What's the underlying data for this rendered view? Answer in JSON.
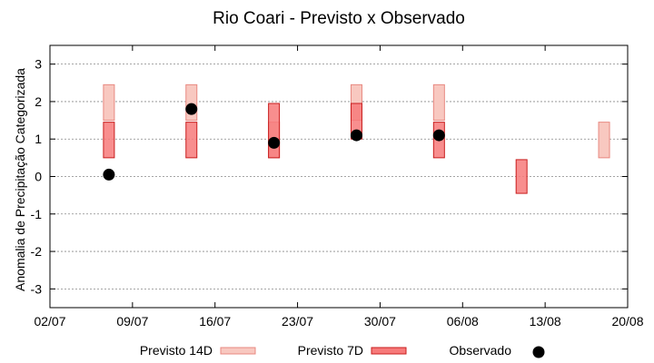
{
  "chart_data": {
    "type": "range-bar",
    "title": "Rio Coari - Previsto x Observado",
    "xlabel": "",
    "ylabel": "Anomalia de Precipitação Categorizada",
    "x_ticks": [
      "02/07",
      "09/07",
      "16/07",
      "23/07",
      "30/07",
      "06/08",
      "13/08",
      "20/08"
    ],
    "xlim": [
      "02/07",
      "20/08"
    ],
    "y_ticks": [
      "-3",
      "-2",
      "-1",
      "0",
      "1",
      "2",
      "3"
    ],
    "ylim": [
      -3.5,
      3.5
    ],
    "grid": "horizontal-dotted",
    "legend_position": "bottom",
    "colors": {
      "forecast_14d_fill": "#f8c8c0",
      "forecast_14d_stroke": "#e88880",
      "forecast_7d_fill": "#f77a7a",
      "forecast_7d_stroke": "#c81e1e",
      "observed": "#000000"
    },
    "series": [
      {
        "name": "Previsto 14D",
        "kind": "range",
        "points": [
          {
            "x": "07/07",
            "low": 1.5,
            "high": 2.45
          },
          {
            "x": "14/07",
            "low": 1.5,
            "high": 2.45
          },
          {
            "x": "21/07",
            "low": 0.5,
            "high": 1.45
          },
          {
            "x": "28/07",
            "low": 1.5,
            "high": 2.45
          },
          {
            "x": "04/08",
            "low": 1.5,
            "high": 2.45
          },
          {
            "x": "18/08",
            "low": 0.5,
            "high": 1.45
          }
        ]
      },
      {
        "name": "Previsto 7D",
        "kind": "range",
        "points": [
          {
            "x": "07/07",
            "low": 0.5,
            "high": 1.45
          },
          {
            "x": "14/07",
            "low": 0.5,
            "high": 1.45
          },
          {
            "x": "21/07",
            "low": 0.5,
            "high": 1.95
          },
          {
            "x": "28/07",
            "low": 1.0,
            "high": 1.95
          },
          {
            "x": "04/08",
            "low": 0.5,
            "high": 1.45
          },
          {
            "x": "11/08",
            "low": -0.45,
            "high": 0.45
          }
        ]
      },
      {
        "name": "Observado",
        "kind": "point",
        "points": [
          {
            "x": "07/07",
            "y": 0.05
          },
          {
            "x": "14/07",
            "y": 1.8
          },
          {
            "x": "21/07",
            "y": 0.9
          },
          {
            "x": "28/07",
            "y": 1.1
          },
          {
            "x": "04/08",
            "y": 1.1
          }
        ]
      }
    ]
  }
}
